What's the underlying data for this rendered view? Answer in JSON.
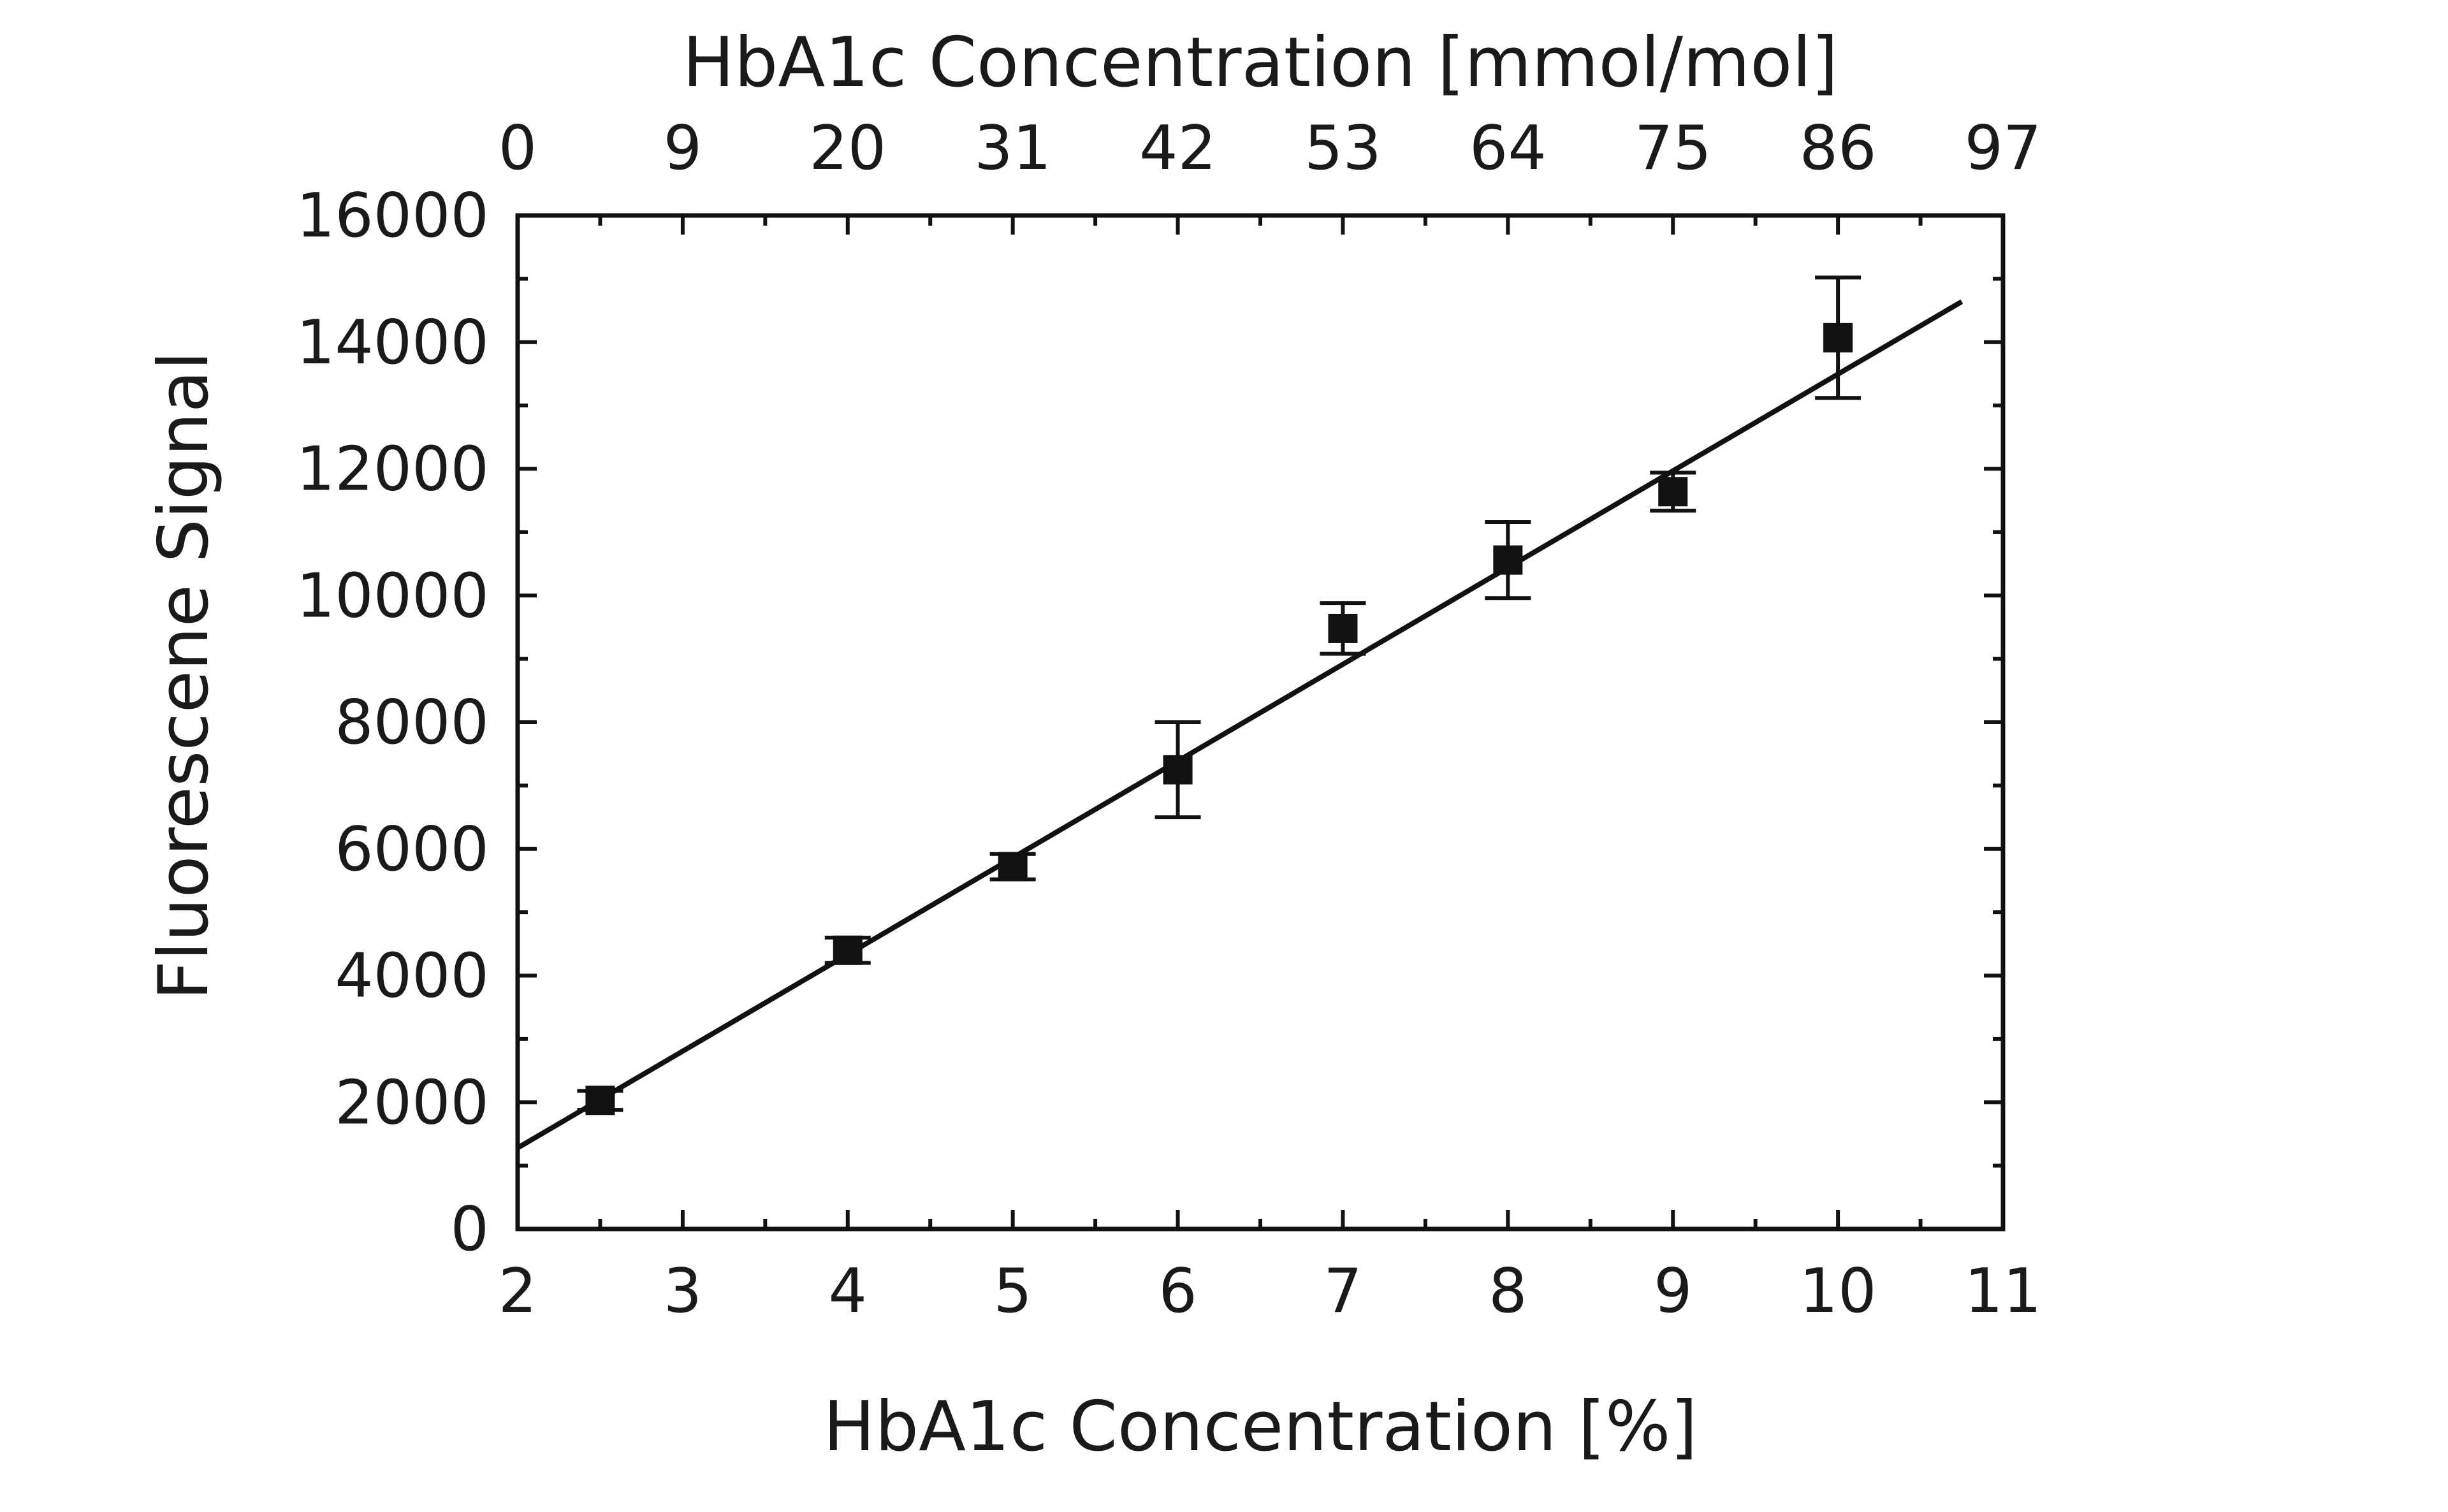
{
  "chart_data": {
    "type": "scatter",
    "x_bottom_label": "HbA1c Concentration [%]",
    "x_top_label": "HbA1c Concentration [mmol/mol]",
    "ylabel": "Fluorescene Signal",
    "xlim": [
      2,
      11
    ],
    "ylim": [
      0,
      16000
    ],
    "bottom_ticks": [
      2,
      3,
      4,
      5,
      6,
      7,
      8,
      9,
      10,
      11
    ],
    "top_ticks": [
      {
        "at": 2,
        "label": "0"
      },
      {
        "at": 3,
        "label": "9"
      },
      {
        "at": 4,
        "label": "20"
      },
      {
        "at": 5,
        "label": "31"
      },
      {
        "at": 6,
        "label": "42"
      },
      {
        "at": 7,
        "label": "53"
      },
      {
        "at": 8,
        "label": "64"
      },
      {
        "at": 9,
        "label": "75"
      },
      {
        "at": 10,
        "label": "86"
      },
      {
        "at": 11,
        "label": "97"
      }
    ],
    "y_ticks": [
      0,
      2000,
      4000,
      6000,
      8000,
      10000,
      12000,
      14000,
      16000
    ],
    "points": [
      {
        "x": 2.5,
        "y": 2030,
        "err": 150
      },
      {
        "x": 4,
        "y": 4400,
        "err": 200
      },
      {
        "x": 5,
        "y": 5720,
        "err": 200
      },
      {
        "x": 6,
        "y": 7250,
        "err": 750
      },
      {
        "x": 7,
        "y": 9480,
        "err": 400
      },
      {
        "x": 8,
        "y": 10560,
        "err": 600
      },
      {
        "x": 9,
        "y": 11640,
        "err": 300
      },
      {
        "x": 10,
        "y": 14070,
        "err": 950
      }
    ],
    "fit_line": {
      "x": [
        2,
        10.75
      ],
      "y": [
        1280,
        14640
      ]
    },
    "grid": false
  }
}
